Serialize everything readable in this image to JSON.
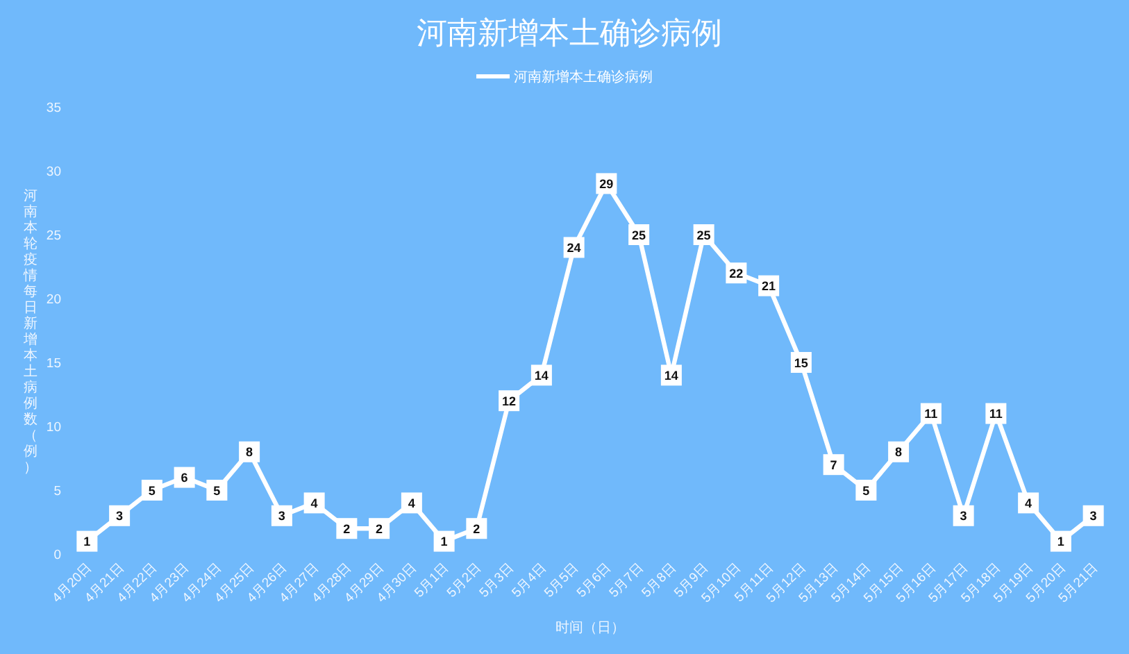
{
  "chart_data": {
    "type": "line",
    "title": "河南新增本土确诊病例",
    "xlabel": "时间（日）",
    "ylabel": "河南本轮疫情每日新增本土病例数（例）",
    "categories": [
      "4月20日",
      "4月21日",
      "4月22日",
      "4月23日",
      "4月24日",
      "4月25日",
      "4月26日",
      "4月27日",
      "4月28日",
      "4月29日",
      "4月30日",
      "5月1日",
      "5月2日",
      "5月3日",
      "5月4日",
      "5月5日",
      "5月6日",
      "5月7日",
      "5月8日",
      "5月9日",
      "5月10日",
      "5月11日",
      "5月12日",
      "5月13日",
      "5月14日",
      "5月15日",
      "5月16日",
      "5月17日",
      "5月18日",
      "5月19日",
      "5月20日",
      "5月21日"
    ],
    "series": [
      {
        "name": "河南新增本土确诊病例",
        "color": "#ffffff",
        "values": [
          1,
          3,
          5,
          6,
          5,
          8,
          3,
          4,
          2,
          2,
          4,
          1,
          2,
          12,
          14,
          24,
          29,
          25,
          14,
          25,
          22,
          21,
          15,
          7,
          5,
          8,
          11,
          3,
          11,
          4,
          1,
          3
        ]
      }
    ],
    "ylim": [
      0,
      35
    ],
    "yticks": [
      0,
      5,
      10,
      15,
      20,
      25,
      30,
      35
    ],
    "data_labels": true,
    "legend": "top",
    "marker": "square"
  }
}
